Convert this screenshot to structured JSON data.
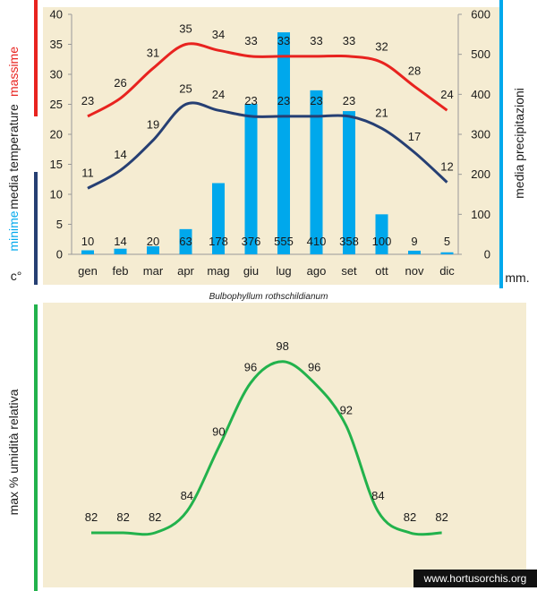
{
  "colors": {
    "max": "#e8231f",
    "min": "#263f73",
    "precip": "#00a8ec",
    "humidity": "#22b24c",
    "panel": "#f5ecd2"
  },
  "chart_data": [
    {
      "type": "line+bar",
      "categories": [
        "gen",
        "feb",
        "mar",
        "apr",
        "mag",
        "giu",
        "lug",
        "ago",
        "set",
        "ott",
        "nov",
        "dic"
      ],
      "series": [
        {
          "name": "massime",
          "values": [
            23,
            26,
            31,
            35,
            34,
            33,
            33,
            33,
            33,
            32,
            28,
            24
          ]
        },
        {
          "name": "minime",
          "values": [
            11,
            14,
            19,
            25,
            24,
            23,
            23,
            23,
            23,
            21,
            17,
            12
          ]
        },
        {
          "values": [
            10,
            14,
            20,
            63,
            178,
            376,
            555,
            410,
            358,
            100,
            9,
            5
          ]
        }
      ],
      "left_axis": {
        "ylim": [
          0,
          40
        ],
        "ticks": [
          0,
          5,
          10,
          15,
          20,
          25,
          30,
          35,
          40
        ],
        "label_top": "massime",
        "label_mid": "media  temperature",
        "label_bottom": "minime",
        "unit": "c°"
      },
      "right_axis": {
        "ylim": [
          0,
          600
        ],
        "ticks": [
          0,
          100,
          200,
          300,
          400,
          500,
          600
        ],
        "label": "media  precipitazioni",
        "unit": "mm."
      },
      "title": "Bulbophyllum rothschildianum"
    },
    {
      "type": "line",
      "categories": [
        "gen",
        "feb",
        "mar",
        "apr",
        "mag",
        "giu",
        "lug",
        "ago",
        "set",
        "ott",
        "nov",
        "dic"
      ],
      "series": [
        {
          "values": [
            82,
            82,
            82,
            84,
            90,
            96,
            98,
            96,
            92,
            84,
            82,
            82
          ]
        }
      ],
      "ylabel": "max  %  umidità relativa"
    }
  ],
  "watermark": "www.hortusorchis.org"
}
